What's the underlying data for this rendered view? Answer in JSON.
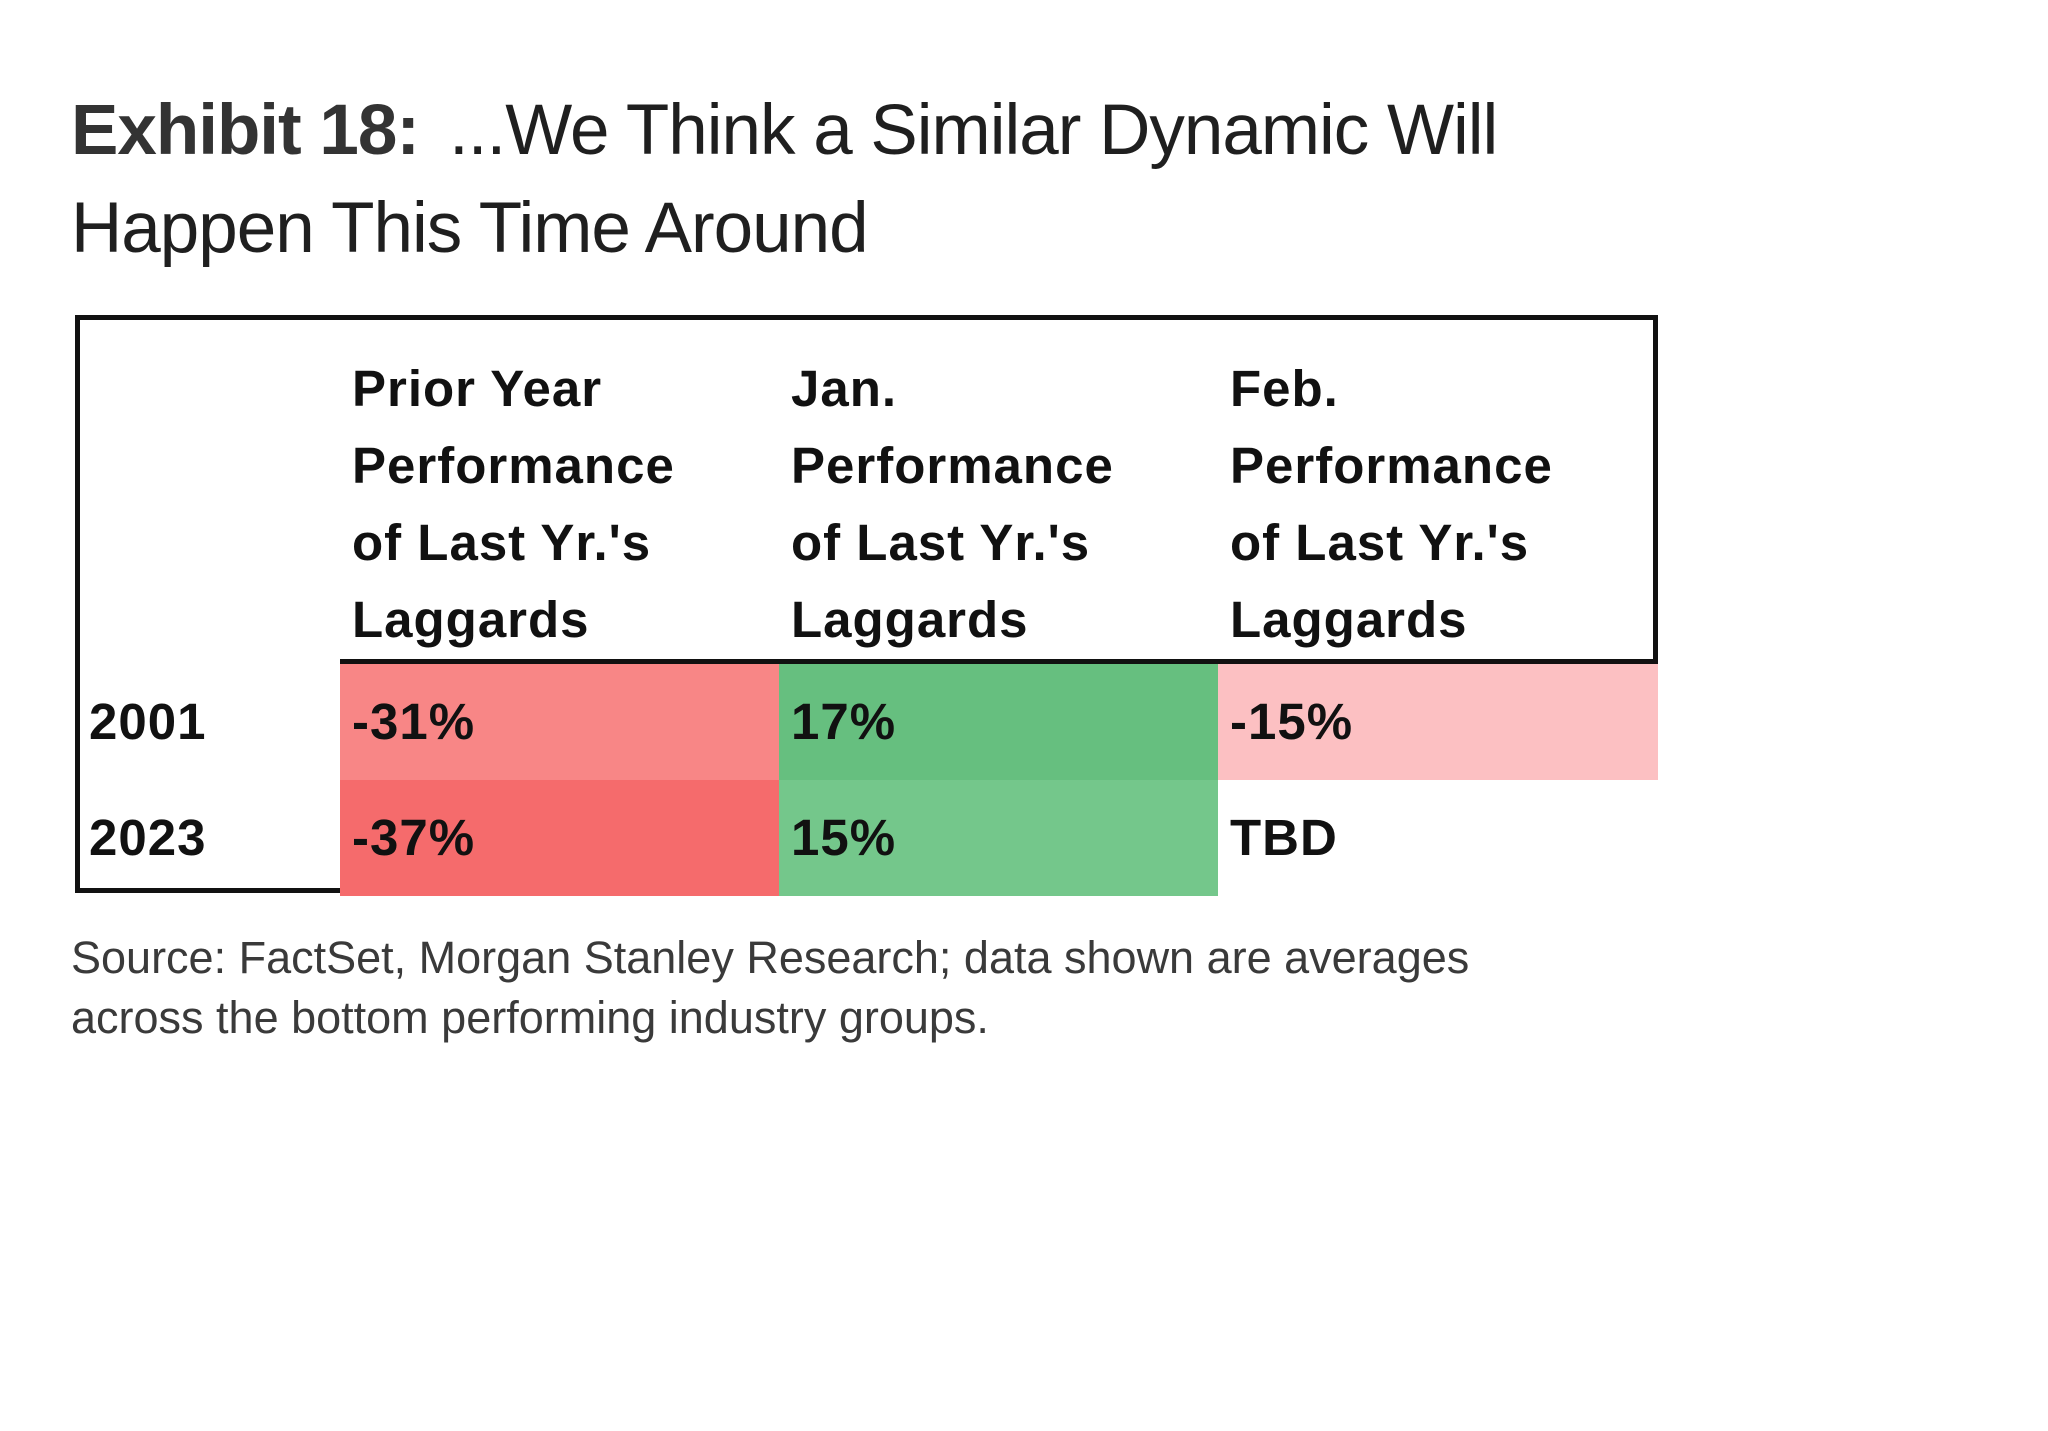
{
  "exhibit": {
    "label": "Exhibit 18:",
    "title_line1": "...We Think a Similar Dynamic Will",
    "title_line2": "Happen This Time Around"
  },
  "source": {
    "line1": "Source: FactSet, Morgan Stanley Research; data shown are averages",
    "line2": "across the bottom performing industry groups."
  },
  "chart_data": {
    "type": "table",
    "title": "Exhibit 18: ...We Think a Similar Dynamic Will Happen This Time Around",
    "columns": [
      {
        "lines": [
          "Prior Year",
          "Performance",
          "of Last Yr.'s",
          "Laggards"
        ]
      },
      {
        "lines": [
          "Jan.",
          "Performance",
          "of Last Yr.'s",
          "Laggards"
        ]
      },
      {
        "lines": [
          "Feb.",
          "Performance",
          "of Last Yr.'s",
          "Laggards"
        ]
      }
    ],
    "rows": [
      {
        "year": "2001",
        "cells": [
          {
            "text": "-31%",
            "value": -31,
            "color": "#f88686"
          },
          {
            "text": "17%",
            "value": 17,
            "color": "#66bf7f"
          },
          {
            "text": "-15%",
            "value": -15,
            "color": "#fcc0c2"
          }
        ]
      },
      {
        "year": "2023",
        "cells": [
          {
            "text": "-37%",
            "value": -37,
            "color": "#f56b6c"
          },
          {
            "text": "15%",
            "value": 15,
            "color": "#74c78b"
          },
          {
            "text": "TBD",
            "value": null,
            "color": "#ffffff"
          }
        ]
      }
    ]
  }
}
